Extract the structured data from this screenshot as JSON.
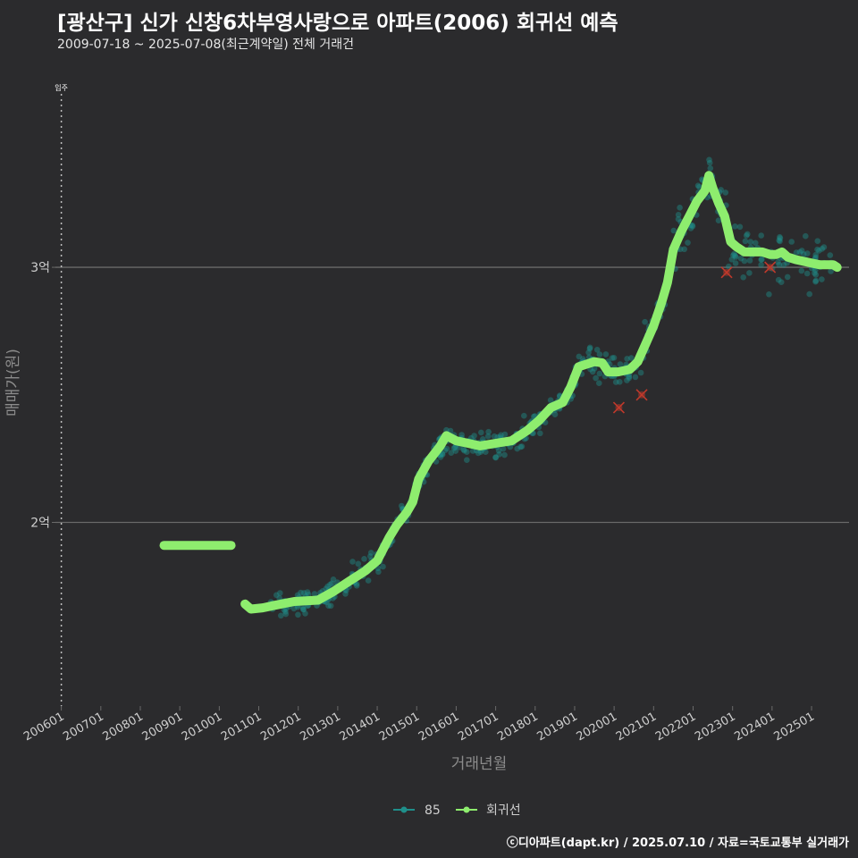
{
  "header": {
    "title": "[광산구] 신가 신창6차부영사랑으로 아파트(2006) 회귀선 예측",
    "subtitle": "2009-07-18 ~ 2025-07-08(최근계약일) 전체 거래건"
  },
  "caption": "ⓒ디아파트(dapt.kr) / 2025.07.10 / 자료=국토교통부 실거래가",
  "colors": {
    "background": "#2b2b2d",
    "points": "#1f8f8a",
    "regression": "#8eed6e",
    "outlier": "#c0392b",
    "grid": "#6a6a6a"
  },
  "chart_data": {
    "type": "scatter",
    "xlabel": "거래년월",
    "ylabel": "매매가(원)",
    "ylim": [
      1.28,
      3.75
    ],
    "y_ticks": [
      {
        "value": 2,
        "label": "2억"
      },
      {
        "value": 3,
        "label": "3억"
      }
    ],
    "x_ticks": [
      "200601",
      "200701",
      "200801",
      "200901",
      "201001",
      "201101",
      "201201",
      "201301",
      "201401",
      "201501",
      "201601",
      "201701",
      "201801",
      "201901",
      "202001",
      "202101",
      "202201",
      "202301",
      "202401",
      "202501"
    ],
    "xlim": [
      2005.85,
      2025.95
    ],
    "move_in_label": "입주",
    "move_in_year": 2006.0,
    "legend": [
      {
        "label": "85",
        "kind": "points"
      },
      {
        "label": "회귀선",
        "kind": "line"
      }
    ],
    "regression_line": [
      [
        2008.6,
        1.91
      ],
      [
        2010.3,
        1.91
      ],
      null,
      [
        2010.65,
        1.68
      ],
      [
        2010.8,
        1.66
      ],
      [
        2011.1,
        1.665
      ],
      [
        2011.4,
        1.675
      ],
      [
        2011.9,
        1.69
      ],
      [
        2012.5,
        1.695
      ],
      [
        2012.9,
        1.73
      ],
      [
        2013.3,
        1.77
      ],
      [
        2013.7,
        1.81
      ],
      [
        2014.0,
        1.85
      ],
      [
        2014.3,
        1.94
      ],
      [
        2014.5,
        1.99
      ],
      [
        2014.75,
        2.04
      ],
      [
        2014.9,
        2.08
      ],
      [
        2015.05,
        2.17
      ],
      [
        2015.3,
        2.24
      ],
      [
        2015.6,
        2.3
      ],
      [
        2015.75,
        2.34
      ],
      [
        2016.0,
        2.32
      ],
      [
        2016.3,
        2.31
      ],
      [
        2016.6,
        2.3
      ],
      [
        2017.0,
        2.31
      ],
      [
        2017.4,
        2.32
      ],
      [
        2017.8,
        2.36
      ],
      [
        2018.1,
        2.4
      ],
      [
        2018.4,
        2.45
      ],
      [
        2018.7,
        2.47
      ],
      [
        2018.9,
        2.53
      ],
      [
        2019.1,
        2.61
      ],
      [
        2019.3,
        2.62
      ],
      [
        2019.5,
        2.63
      ],
      [
        2019.7,
        2.625
      ],
      [
        2019.85,
        2.59
      ],
      [
        2020.1,
        2.59
      ],
      [
        2020.4,
        2.6
      ],
      [
        2020.6,
        2.63
      ],
      [
        2020.8,
        2.7
      ],
      [
        2021.0,
        2.77
      ],
      [
        2021.2,
        2.86
      ],
      [
        2021.35,
        2.94
      ],
      [
        2021.5,
        3.07
      ],
      [
        2021.7,
        3.14
      ],
      [
        2021.9,
        3.2
      ],
      [
        2022.1,
        3.26
      ],
      [
        2022.3,
        3.3
      ],
      [
        2022.4,
        3.36
      ],
      [
        2022.5,
        3.31
      ],
      [
        2022.65,
        3.25
      ],
      [
        2022.8,
        3.2
      ],
      [
        2022.95,
        3.1
      ],
      [
        2023.1,
        3.08
      ],
      [
        2023.3,
        3.06
      ],
      [
        2023.55,
        3.06
      ],
      [
        2023.75,
        3.06
      ],
      [
        2023.95,
        3.05
      ],
      [
        2024.1,
        3.05
      ],
      [
        2024.25,
        3.06
      ],
      [
        2024.4,
        3.04
      ],
      [
        2024.6,
        3.03
      ],
      [
        2024.9,
        3.02
      ],
      [
        2025.2,
        3.01
      ],
      [
        2025.4,
        3.01
      ],
      [
        2025.55,
        3.01
      ],
      [
        2025.65,
        3.0
      ]
    ],
    "outliers": [
      [
        2020.12,
        2.45
      ],
      [
        2020.7,
        2.5
      ],
      [
        2022.85,
        2.98
      ],
      [
        2023.95,
        3.0
      ]
    ]
  }
}
